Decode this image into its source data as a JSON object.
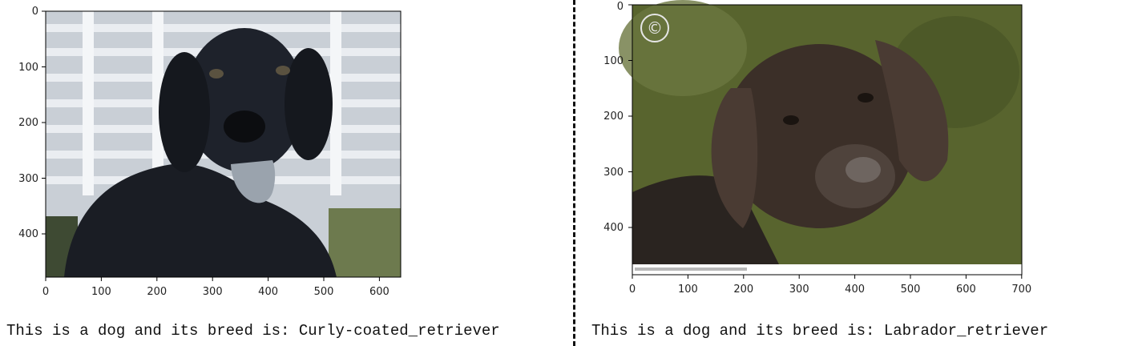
{
  "panels": [
    {
      "x_ticks": [
        "0",
        "100",
        "200",
        "300",
        "400",
        "500",
        "600"
      ],
      "y_ticks": [
        "0",
        "100",
        "200",
        "300",
        "400"
      ],
      "caption": "This is a dog and its breed is: Curly-coated_retriever"
    },
    {
      "x_ticks": [
        "0",
        "100",
        "200",
        "300",
        "400",
        "500",
        "600",
        "700"
      ],
      "y_ticks": [
        "0",
        "100",
        "200",
        "300",
        "400"
      ],
      "caption": "This is a dog and its breed is: Labrador_retriever",
      "watermark_symbol": "©"
    }
  ],
  "colors": {
    "left_background": "#c9cfd6",
    "left_dog": "#1a1d24",
    "right_background": "#58642e",
    "right_dog": "#3b2f28"
  }
}
